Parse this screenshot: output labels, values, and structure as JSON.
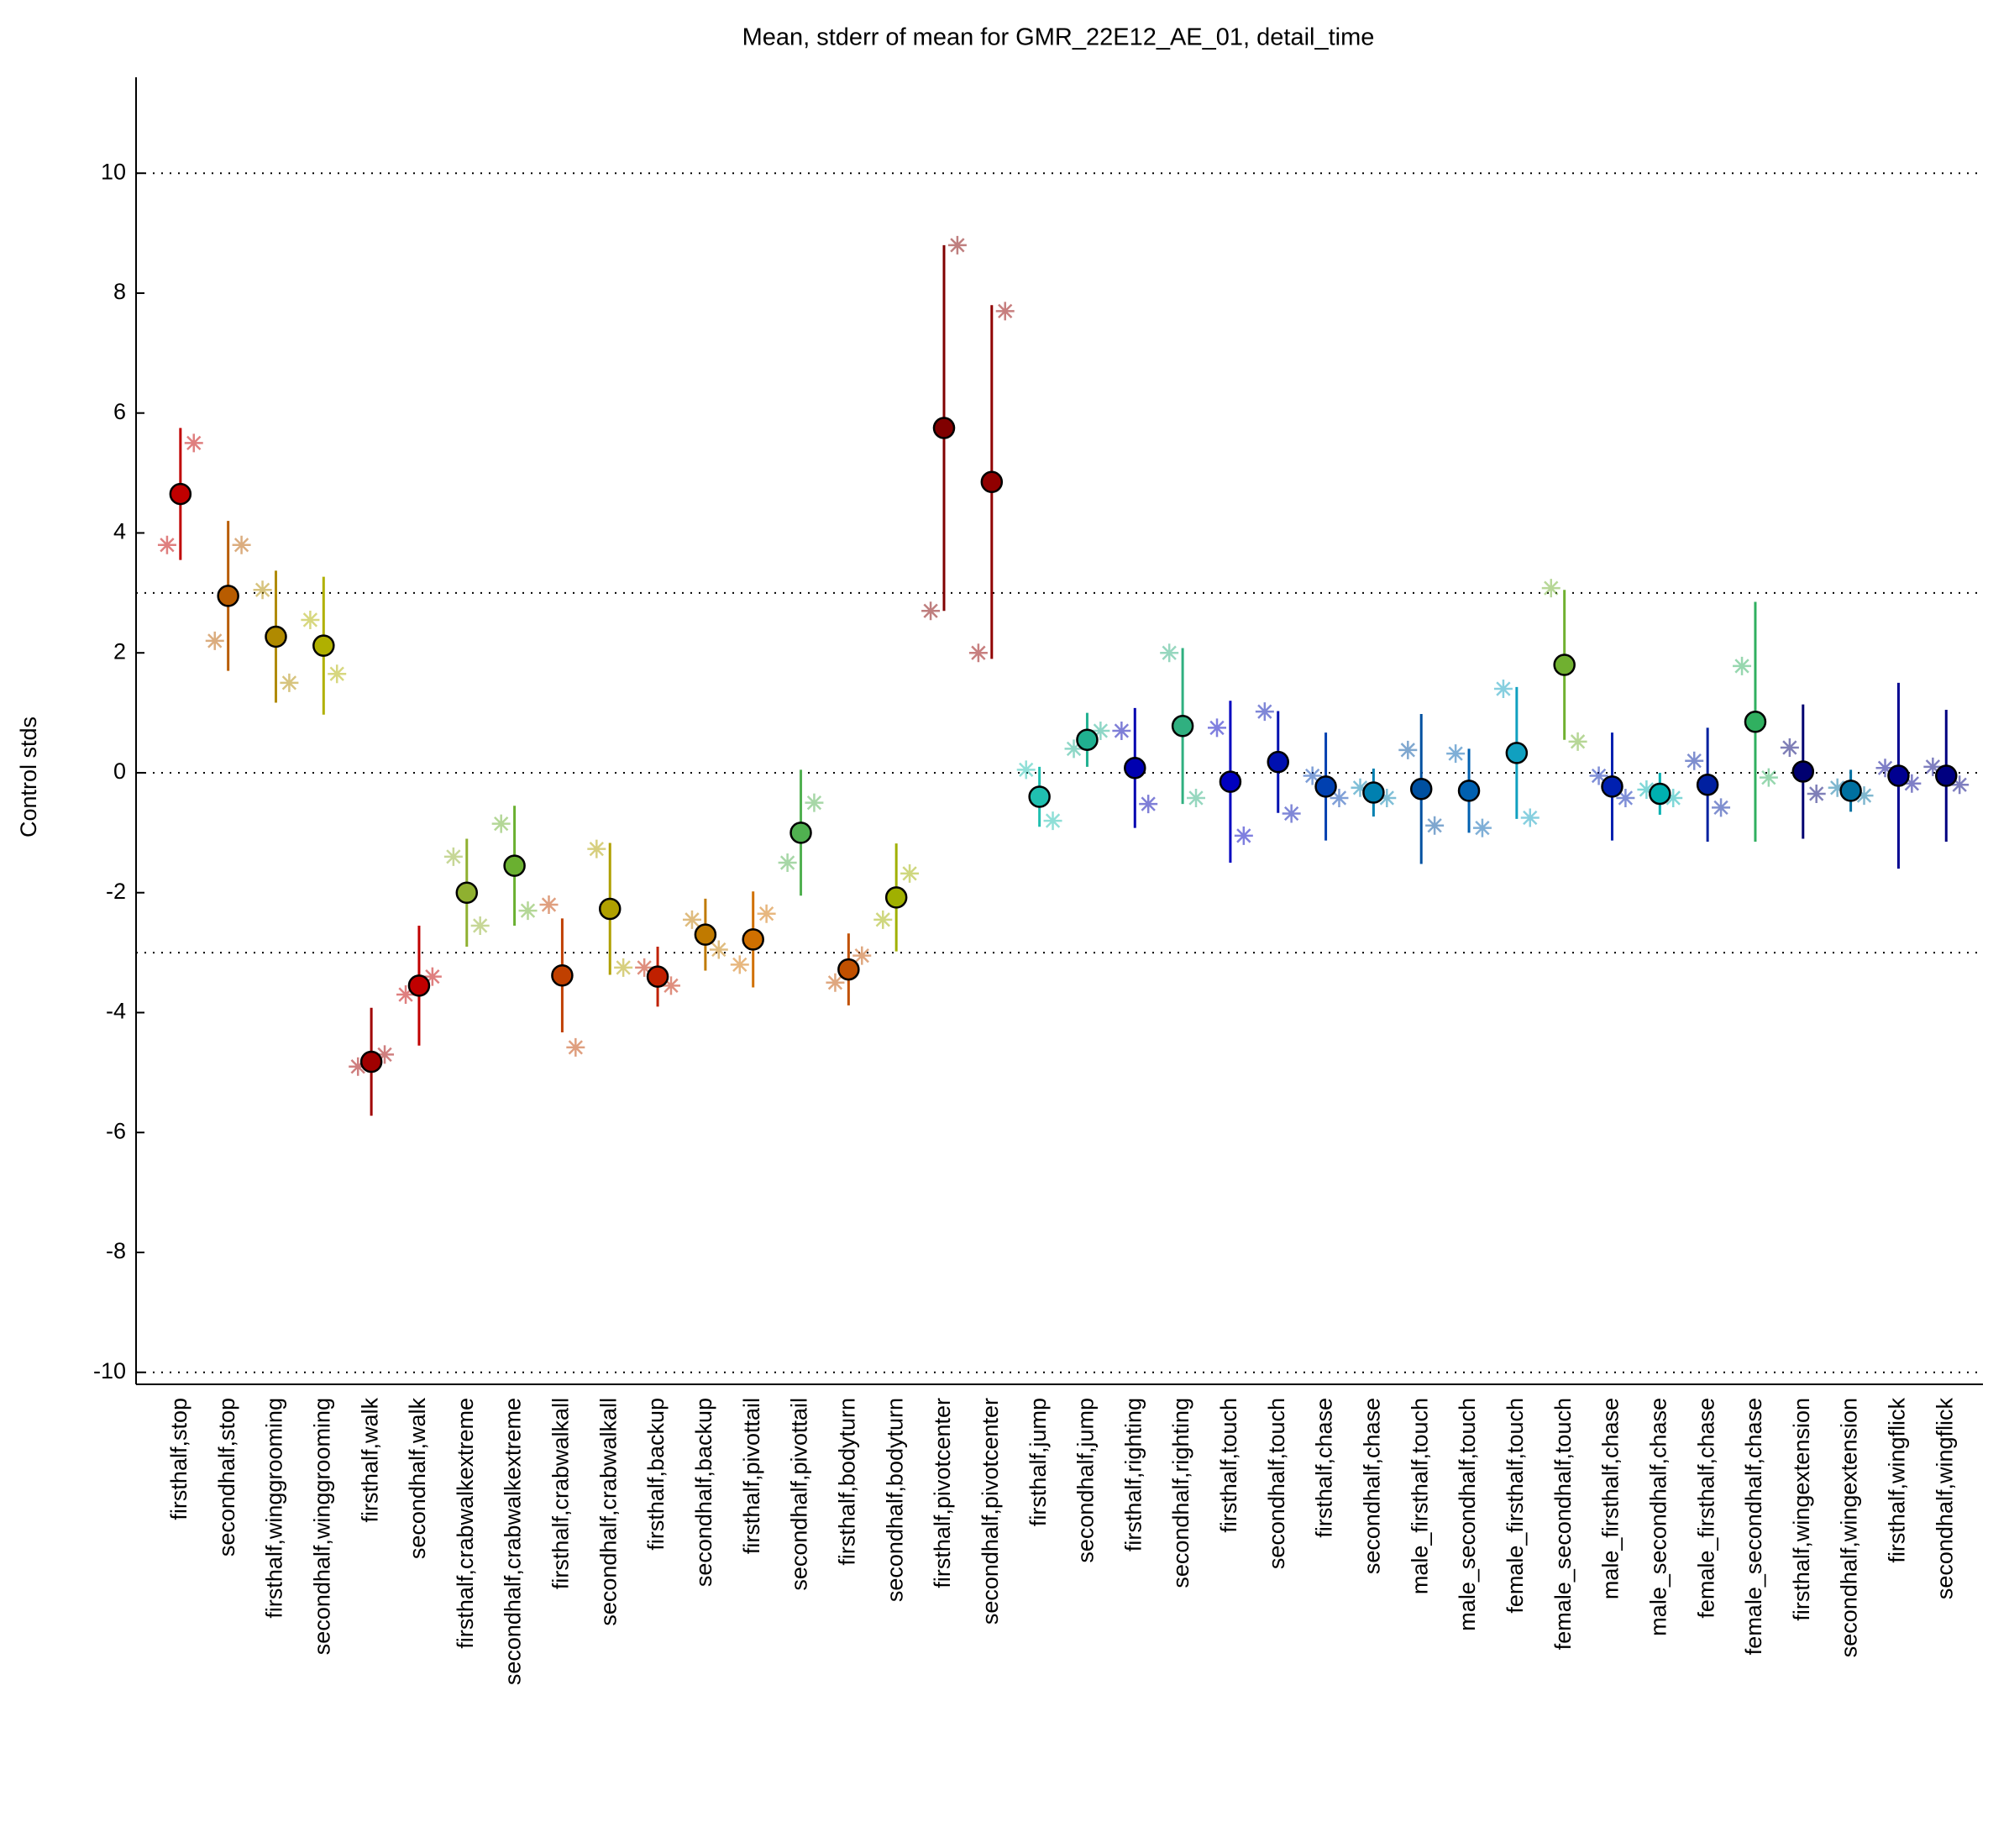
{
  "chart_data": {
    "type": "errorbar",
    "title": "Mean, stderr of mean for GMR_22E12_AE_01, detail_time",
    "y_label": "Control stds",
    "categories": [
      "firsthalf,stop",
      "secondhalf,stop",
      "firsthalf,winggrooming",
      "secondhalf,winggrooming",
      "firsthalf,walk",
      "secondhalf,walk",
      "firsthalf,crabwalkextreme",
      "secondhalf,crabwalkextreme",
      "firsthalf,crabwalkall",
      "secondhalf,crabwalkall",
      "firsthalf,backup",
      "secondhalf,backup",
      "firsthalf,pivottail",
      "secondhalf,pivottail",
      "firsthalf,bodyturn",
      "secondhalf,bodyturn",
      "firsthalf,pivotcenter",
      "secondhalf,pivotcenter",
      "firsthalf,jump",
      "secondhalf,jump",
      "firsthalf,righting",
      "secondhalf,righting",
      "firsthalf,touch",
      "secondhalf,touch",
      "firsthalf,chase",
      "secondhalf,chase",
      "male_firsthalf,touch",
      "male_secondhalf,touch",
      "female_firsthalf,touch",
      "female_secondhalf,touch",
      "male_firsthalf,chase",
      "male_secondhalf,chase",
      "female_firsthalf,chase",
      "female_secondhalf,chase",
      "firsthalf,wingextension",
      "secondhalf,wingextension",
      "firsthalf,wingflick",
      "secondhalf,wingflick"
    ],
    "values": [
      4.65,
      2.95,
      2.27,
      2.12,
      -4.82,
      -3.55,
      -2.0,
      -1.55,
      -3.38,
      -2.27,
      -3.4,
      -2.7,
      -2.78,
      -1.0,
      -3.28,
      -2.08,
      5.75,
      4.85,
      -0.4,
      0.55,
      0.08,
      0.78,
      -0.15,
      0.18,
      -0.23,
      -0.33,
      -0.27,
      -0.3,
      0.33,
      1.8,
      -0.23,
      -0.35,
      -0.2,
      0.85,
      0.02,
      -0.3,
      -0.05,
      -0.05
    ],
    "errors": [
      1.1,
      1.25,
      1.1,
      1.15,
      0.9,
      1.0,
      0.9,
      1.0,
      0.95,
      1.1,
      0.5,
      0.6,
      0.8,
      1.05,
      0.6,
      0.9,
      3.05,
      2.95,
      0.5,
      0.45,
      1.0,
      1.3,
      1.35,
      0.85,
      0.9,
      0.4,
      1.25,
      0.7,
      1.1,
      1.25,
      0.9,
      0.35,
      0.95,
      2.0,
      1.12,
      0.35,
      1.55,
      1.1
    ],
    "stars_left": [
      3.8,
      2.2,
      3.05,
      2.55,
      -4.9,
      -3.7,
      -1.4,
      -0.85,
      -2.2,
      -1.27,
      -3.25,
      -2.45,
      -3.2,
      -1.5,
      -3.5,
      -2.45,
      2.7,
      2.0,
      0.05,
      0.4,
      0.7,
      2.0,
      0.75,
      1.02,
      -0.05,
      -0.25,
      0.38,
      0.32,
      1.4,
      3.08,
      -0.05,
      -0.28,
      0.2,
      1.78,
      0.42,
      -0.25,
      0.08,
      0.1
    ],
    "stars_right": [
      5.5,
      3.8,
      1.5,
      1.65,
      -4.7,
      -3.4,
      -2.55,
      -2.3,
      -4.58,
      -3.25,
      -3.55,
      -2.95,
      -2.35,
      -0.5,
      -3.05,
      -1.68,
      8.8,
      7.7,
      -0.8,
      0.7,
      -0.52,
      -0.42,
      -1.05,
      -0.68,
      -0.42,
      -0.42,
      -0.88,
      -0.92,
      -0.75,
      0.52,
      -0.42,
      -0.42,
      -0.58,
      -0.08,
      -0.35,
      -0.38,
      -0.18,
      -0.2
    ],
    "colors": [
      "#c00000",
      "#b85c00",
      "#b08a00",
      "#b0b000",
      "#a00000",
      "#c00000",
      "#8fb030",
      "#6ab030",
      "#c04000",
      "#b0a000",
      "#c02000",
      "#c07a00",
      "#d07000",
      "#50b050",
      "#c05000",
      "#a0b000",
      "#800000",
      "#900000",
      "#20c0b0",
      "#20b090",
      "#0000b0",
      "#30b080",
      "#0000c0",
      "#0010b0",
      "#0040b0",
      "#0080b0",
      "#0050a0",
      "#0060b0",
      "#10a0c0",
      "#70b030",
      "#0020b0",
      "#00b0b0",
      "#0020a0",
      "#30b060",
      "#000070",
      "#0070a0",
      "#000090",
      "#000080"
    ],
    "ylim": [
      -10.2,
      11.6
    ],
    "yticks": [
      -10,
      -8,
      -6,
      -4,
      -2,
      0,
      2,
      4,
      6,
      8,
      10
    ],
    "gridlines": [
      -10,
      -3,
      0,
      3,
      10
    ]
  }
}
